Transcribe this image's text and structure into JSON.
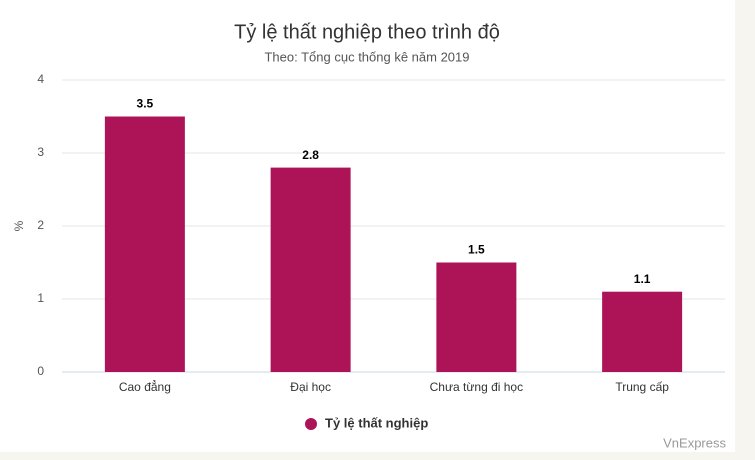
{
  "chart_data": {
    "type": "bar",
    "title": "Tỷ lệ thất nghiệp theo trình độ",
    "subtitle": "Theo: Tổng cục thống kê năm 2019",
    "y_axis_label": "%",
    "categories": [
      "Cao đẳng",
      "Đại học",
      "Chưa từng đi học",
      "Trung cấp"
    ],
    "series": [
      {
        "name": "Tỷ lệ thất nghiệp",
        "color": "#ad1457",
        "values": [
          3.5,
          2.8,
          1.5,
          1.1
        ]
      }
    ],
    "ylim": [
      0,
      4
    ],
    "yticks": [
      0,
      1,
      2,
      3,
      4
    ],
    "grid": true,
    "legend": "bottom",
    "credits": "VnExpress"
  }
}
